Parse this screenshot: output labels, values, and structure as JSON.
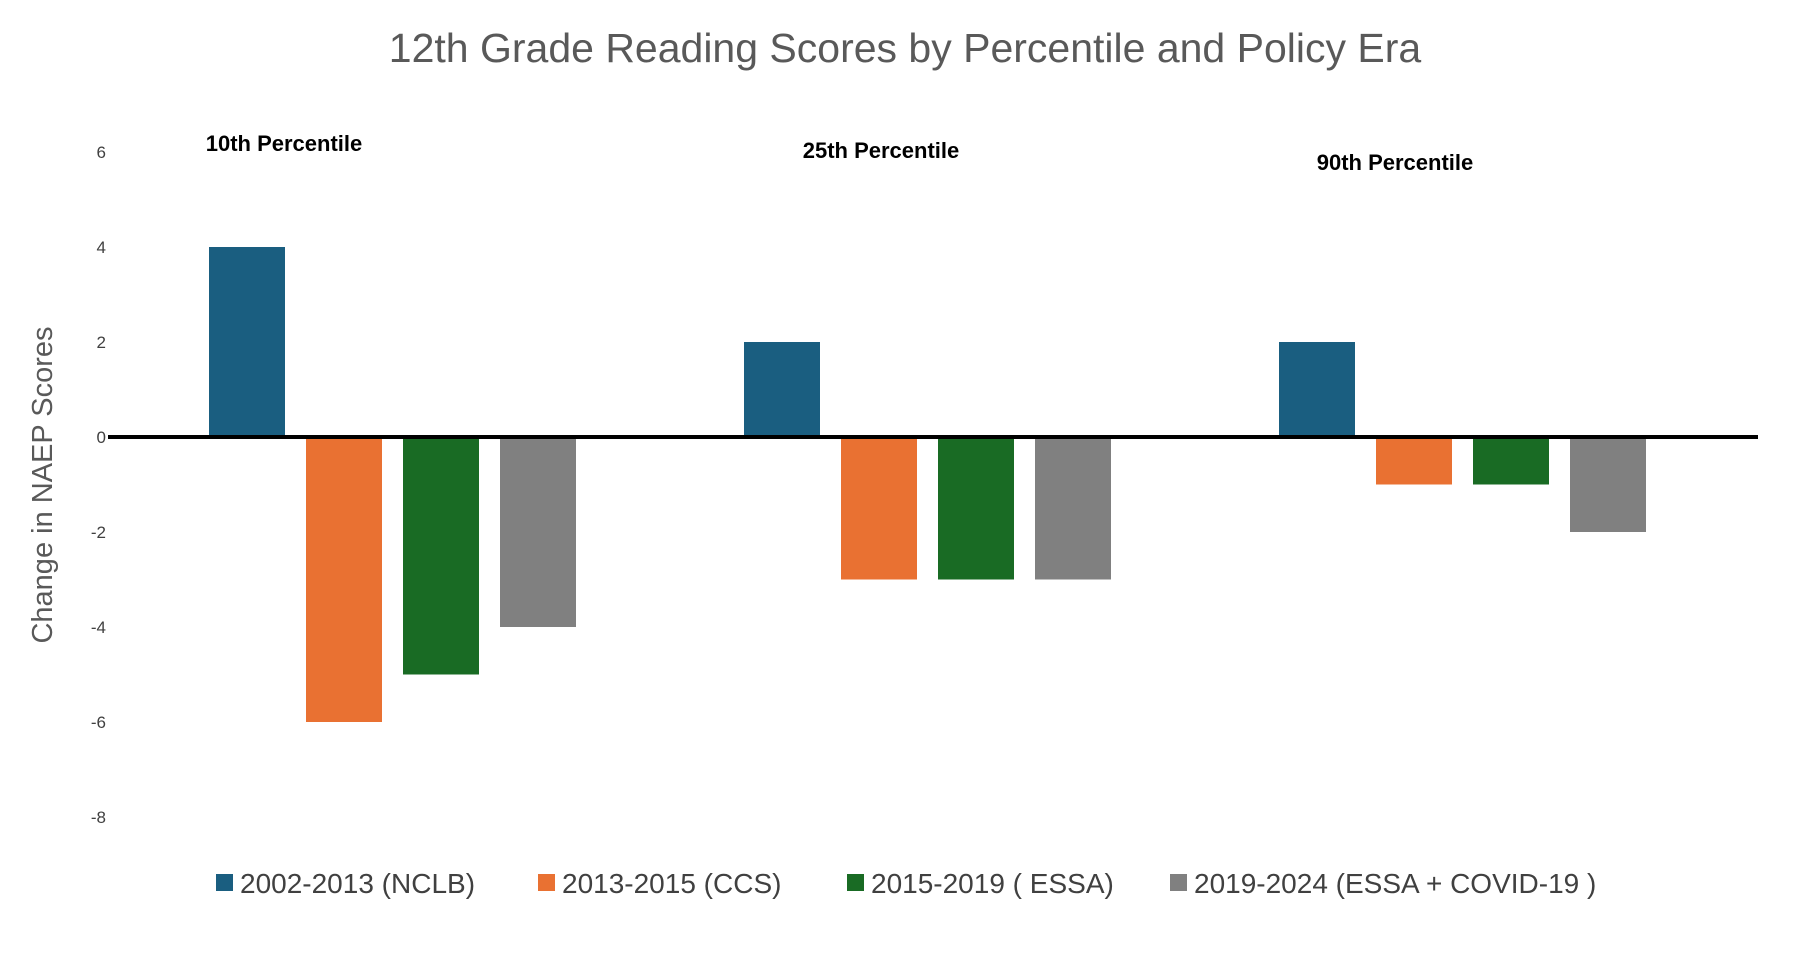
{
  "chart_data": {
    "type": "bar",
    "title": "12th Grade Reading Scores by Percentile and Policy Era",
    "ylabel": "Change in NAEP Scores",
    "xlabel": "",
    "ylim": [
      -8,
      6
    ],
    "yticks": [
      6,
      4,
      2,
      0,
      -2,
      -4,
      -6,
      -8
    ],
    "categories": [
      "10th Percentile",
      "25th Percentile",
      "90th Percentile"
    ],
    "series": [
      {
        "name": "2002-2013 (NCLB)",
        "color": "#1a5e80",
        "values": [
          4,
          2,
          2
        ]
      },
      {
        "name": "2013-2015 (CCS)",
        "color": "#e97132",
        "values": [
          -6,
          -3,
          -1
        ]
      },
      {
        "name": "2015-2019 ( ESSA)",
        "color": "#196b24",
        "values": [
          -5,
          -3,
          -1
        ]
      },
      {
        "name": "2019-2024 (ESSA + COVID-19 )",
        "color": "#808080",
        "values": [
          -4,
          -3,
          -2
        ]
      }
    ],
    "grid": false,
    "legend": "bottom"
  }
}
